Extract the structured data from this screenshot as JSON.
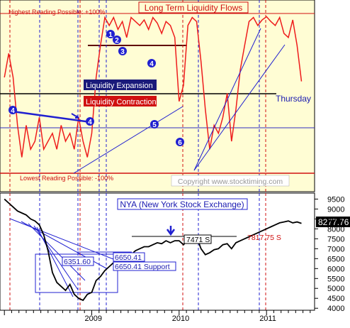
{
  "chart_data": [
    {
      "type": "line",
      "title": "Long Term Liquidity Flows",
      "annotations": {
        "highest": "Highest Reading Possible: +100%",
        "lowest": "Lowest Reading Possible: -100%",
        "expansion": "Liquidity Expansion",
        "contraction": "Liquidity Contraction",
        "current": "Thursday",
        "copyright": "Copyright www.stocktiming.com"
      },
      "markers": [
        "1",
        "2",
        "3",
        "4",
        "4",
        "4",
        "5",
        "6"
      ],
      "ylim": [
        -100,
        100
      ],
      "series": [
        {
          "color": "#ee1c1c",
          "x": [
            2008.0,
            2008.05,
            2008.1,
            2008.15,
            2008.2,
            2008.25,
            2008.3,
            2008.35,
            2008.4,
            2008.45,
            2008.5,
            2008.55,
            2008.6,
            2008.65,
            2008.7,
            2008.75,
            2008.8,
            2008.85,
            2008.9,
            2008.95,
            2009.0,
            2009.05,
            2009.1,
            2009.15,
            2009.2,
            2009.25,
            2009.3,
            2009.35,
            2009.4,
            2009.45,
            2009.5,
            2009.55,
            2009.6,
            2009.65,
            2009.7,
            2009.75,
            2009.8,
            2009.85,
            2009.9,
            2009.95,
            2010.0,
            2010.05,
            2010.1,
            2010.15,
            2010.2,
            2010.25,
            2010.3,
            2010.35,
            2010.4,
            2010.45,
            2010.5,
            2010.55,
            2010.6,
            2010.65,
            2010.7,
            2010.75,
            2010.8,
            2010.85,
            2010.9,
            2010.95,
            2011.0,
            2011.05,
            2011.1,
            2011.15,
            2011.2,
            2011.25,
            2011.3,
            2011.35,
            2011.4
          ],
          "values": [
            20,
            50,
            20,
            -40,
            -80,
            -40,
            -70,
            -60,
            -30,
            -70,
            -60,
            -50,
            -70,
            -40,
            -60,
            -50,
            -70,
            -30,
            -60,
            -80,
            -50,
            20,
            60,
            95,
            85,
            95,
            80,
            90,
            70,
            95,
            90,
            85,
            92,
            80,
            95,
            88,
            75,
            90,
            85,
            70,
            -10,
            10,
            85,
            95,
            90,
            40,
            -20,
            -70,
            -40,
            -50,
            -30,
            0,
            -60,
            -20,
            30,
            60,
            90,
            95,
            85,
            92,
            96,
            90,
            85,
            95,
            75,
            70,
            92,
            60,
            15
          ]
        }
      ]
    },
    {
      "type": "line",
      "title": "NYA (New York Stock Exchange)",
      "annotations": {
        "s1": "6351.60",
        "s2": "6650.41",
        "s3": "6650.41 Support",
        "s4": "7471 S",
        "s5": "7817.75 S",
        "last": "8277.76"
      },
      "yticks": [
        4000,
        4500,
        5000,
        5500,
        6000,
        6500,
        7000,
        7500,
        8000,
        8500,
        9000,
        9500
      ],
      "ylim": [
        3900,
        9800
      ],
      "xticks": [
        "2009",
        "2010",
        "2011"
      ],
      "series": [
        {
          "color": "#000000",
          "x": [
            2008.0,
            2008.05,
            2008.1,
            2008.15,
            2008.2,
            2008.25,
            2008.3,
            2008.35,
            2008.4,
            2008.45,
            2008.5,
            2008.55,
            2008.6,
            2008.65,
            2008.7,
            2008.75,
            2008.8,
            2008.85,
            2008.9,
            2008.95,
            2009.0,
            2009.05,
            2009.1,
            2009.15,
            2009.2,
            2009.25,
            2009.3,
            2009.35,
            2009.4,
            2009.45,
            2009.5,
            2009.55,
            2009.6,
            2009.65,
            2009.7,
            2009.75,
            2009.8,
            2009.85,
            2009.9,
            2009.95,
            2010.0,
            2010.05,
            2010.1,
            2010.15,
            2010.2,
            2010.25,
            2010.3,
            2010.35,
            2010.4,
            2010.45,
            2010.5,
            2010.55,
            2010.6,
            2010.65,
            2010.7,
            2010.75,
            2010.8,
            2010.85,
            2010.9,
            2010.95,
            2011.0,
            2011.05,
            2011.1,
            2011.15,
            2011.2,
            2011.25,
            2011.3,
            2011.35,
            2011.4
          ],
          "values": [
            9500,
            9300,
            9100,
            8900,
            8800,
            8700,
            8500,
            8400,
            8200,
            7700,
            6900,
            5800,
            5300,
            5100,
            4900,
            5200,
            4700,
            4500,
            4400,
            4700,
            4800,
            5400,
            5600,
            5900,
            6100,
            6300,
            6400,
            6300,
            6600,
            6700,
            6900,
            7000,
            7100,
            7100,
            7200,
            7300,
            7250,
            7400,
            7300,
            7400,
            7400,
            7200,
            7450,
            7550,
            7600,
            7000,
            6700,
            6800,
            6950,
            7000,
            7200,
            7250,
            7000,
            7300,
            7400,
            7500,
            7600,
            7700,
            7800,
            7900,
            8000,
            8100,
            8200,
            8300,
            8350,
            8400,
            8300,
            8350,
            8277
          ]
        }
      ]
    }
  ]
}
